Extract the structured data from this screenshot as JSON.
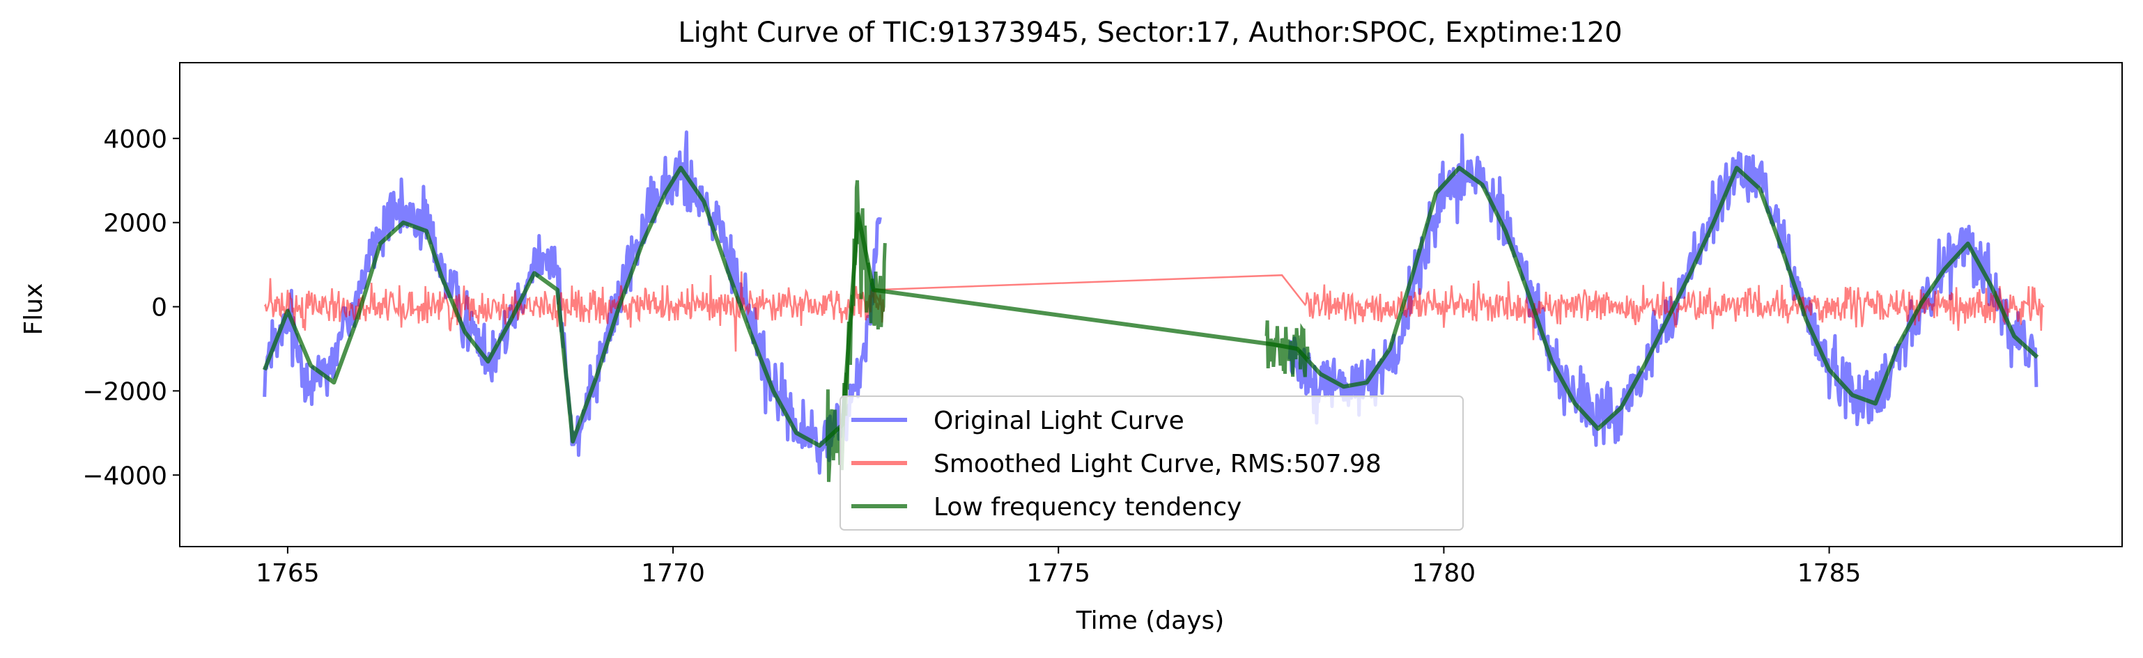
{
  "chart_data": {
    "type": "line",
    "title": "Light Curve of TIC:91373945, Sector:17, Author:SPOC, Exptime:120",
    "xlabel": "Time (days)",
    "ylabel": "Flux",
    "xlim": [
      1763.6,
      1788.8
    ],
    "ylim": [
      -5700,
      5800
    ],
    "xticks": [
      1765,
      1770,
      1775,
      1780,
      1785
    ],
    "yticks": [
      -4000,
      -2000,
      0,
      2000,
      4000
    ],
    "ytick_labels": [
      "−4000",
      "−2000",
      "0",
      "2000",
      "4000"
    ],
    "grid": false,
    "legend_position": "lower center",
    "series": [
      {
        "name": "Original Light Curve",
        "color": "#0000ff",
        "opacity": 0.5,
        "noise_amplitude": 850,
        "x": [
          1764.7,
          1765.0,
          1765.3,
          1765.6,
          1765.9,
          1766.2,
          1766.5,
          1766.8,
          1767.0,
          1767.3,
          1767.6,
          1767.9,
          1768.2,
          1768.5,
          1768.7,
          1769.0,
          1769.3,
          1769.6,
          1769.9,
          1770.1,
          1770.4,
          1770.7,
          1771.0,
          1771.3,
          1771.6,
          1771.9,
          1772.2,
          1772.5,
          1772.7,
          1777.9,
          1778.2,
          1778.5,
          1778.8,
          1779.1,
          1779.4,
          1779.7,
          1780.0,
          1780.2,
          1780.5,
          1780.8,
          1781.1,
          1781.4,
          1781.7,
          1782.0,
          1782.3,
          1782.6,
          1782.9,
          1783.2,
          1783.5,
          1783.8,
          1784.1,
          1784.4,
          1784.7,
          1785.0,
          1785.3,
          1785.6,
          1785.9,
          1786.2,
          1786.5,
          1786.8,
          1787.1,
          1787.4,
          1787.7
        ],
        "y": [
          -1500,
          -400,
          -1800,
          -1200,
          300,
          1800,
          2200,
          2000,
          900,
          -300,
          -1200,
          -200,
          1200,
          800,
          -3300,
          -1500,
          200,
          1800,
          2800,
          3300,
          2600,
          1200,
          -200,
          -1800,
          -2900,
          -3300,
          -2800,
          -900,
          2500,
          -1000,
          -1500,
          -1800,
          -1900,
          -1700,
          -900,
          1000,
          2800,
          3200,
          3000,
          2000,
          500,
          -1200,
          -2200,
          -2600,
          -2500,
          -1500,
          -300,
          900,
          2200,
          3200,
          3000,
          1600,
          -200,
          -1400,
          -2000,
          -2200,
          -1000,
          0,
          900,
          1600,
          600,
          -800,
          -1200
        ]
      },
      {
        "name": "Smoothed Light Curve, RMS:507.98",
        "color": "#ff0000",
        "opacity": 0.5,
        "noise_amplitude": 520,
        "x": [
          1764.7,
          1772.6,
          1777.9,
          1787.8
        ],
        "y": [
          0,
          400,
          750,
          0
        ]
      },
      {
        "name": "Low frequency tendency",
        "color": "#006400",
        "opacity": 0.7,
        "x": [
          1764.7,
          1765.0,
          1765.3,
          1765.6,
          1765.9,
          1766.2,
          1766.5,
          1766.8,
          1767.0,
          1767.3,
          1767.6,
          1767.9,
          1768.2,
          1768.5,
          1768.7,
          1769.0,
          1769.3,
          1769.6,
          1769.9,
          1770.1,
          1770.4,
          1770.7,
          1771.0,
          1771.3,
          1771.6,
          1771.9,
          1772.2,
          1772.4,
          1772.6,
          1777.8,
          1778.1,
          1778.4,
          1778.7,
          1779.0,
          1779.3,
          1779.6,
          1779.9,
          1780.2,
          1780.5,
          1780.8,
          1781.1,
          1781.4,
          1781.7,
          1782.0,
          1782.3,
          1782.6,
          1782.9,
          1783.2,
          1783.5,
          1783.8,
          1784.1,
          1784.4,
          1784.7,
          1785.0,
          1785.3,
          1785.6,
          1785.9,
          1786.2,
          1786.5,
          1786.8,
          1787.1,
          1787.4,
          1787.7
        ],
        "y": [
          -1500,
          -100,
          -1400,
          -1800,
          -300,
          1500,
          2000,
          1800,
          700,
          -600,
          -1300,
          -300,
          800,
          400,
          -3200,
          -1700,
          0,
          1500,
          2700,
          3300,
          2500,
          900,
          -600,
          -2000,
          -3000,
          -3300,
          -2800,
          2200,
          400,
          -900,
          -1000,
          -1600,
          -1900,
          -1800,
          -1000,
          800,
          2700,
          3300,
          2900,
          1800,
          300,
          -1300,
          -2300,
          -2900,
          -2400,
          -1400,
          -300,
          800,
          2000,
          3300,
          2800,
          1300,
          -300,
          -1500,
          -2100,
          -2300,
          -900,
          100,
          900,
          1500,
          500,
          -700,
          -1200
        ],
        "burst_segments": [
          [
            1772.0,
            1772.75,
            1300
          ],
          [
            1777.7,
            1778.25,
            750
          ]
        ]
      }
    ],
    "legend": [
      {
        "label": "Original Light Curve",
        "color": "#0000ff",
        "opacity": 0.5
      },
      {
        "label": "Smoothed Light Curve, RMS:507.98",
        "color": "#ff0000",
        "opacity": 0.5
      },
      {
        "label": "Low frequency tendency",
        "color": "#006400",
        "opacity": 0.7
      }
    ]
  }
}
